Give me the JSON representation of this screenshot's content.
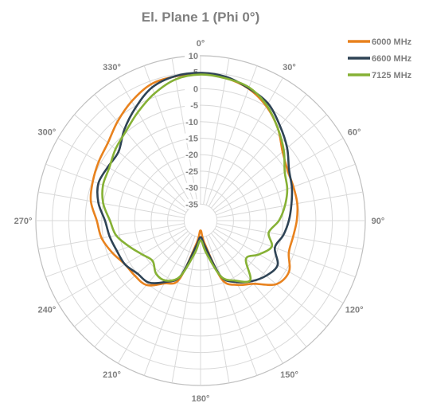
{
  "chart_data": {
    "type": "polar-line",
    "title": "El. Plane 1 (Phi 0°)",
    "angle_ticks": [
      {
        "deg": 0,
        "label": "0°"
      },
      {
        "deg": 30,
        "label": "30°"
      },
      {
        "deg": 60,
        "label": "60°"
      },
      {
        "deg": 90,
        "label": "90°"
      },
      {
        "deg": 120,
        "label": "120°"
      },
      {
        "deg": 150,
        "label": "150°"
      },
      {
        "deg": 180,
        "label": "180°"
      },
      {
        "deg": 210,
        "label": "210°"
      },
      {
        "deg": 240,
        "label": "240°"
      },
      {
        "deg": 270,
        "label": "270°"
      },
      {
        "deg": 300,
        "label": "300°"
      },
      {
        "deg": 330,
        "label": "330°"
      }
    ],
    "radial_ticks": [
      10,
      5,
      0,
      -5,
      -10,
      -15,
      -20,
      -25,
      -30,
      -35
    ],
    "radial_range": [
      -40,
      10
    ],
    "angular_grid_step": 10,
    "grid": true,
    "legend_position": "top-right",
    "series": [
      {
        "name": "6000 MHz",
        "color": "#e8821e",
        "angles": [
          0,
          10,
          20,
          30,
          40,
          50,
          60,
          70,
          80,
          90,
          100,
          110,
          120,
          130,
          140,
          150,
          160,
          170,
          180,
          190,
          200,
          210,
          220,
          230,
          240,
          250,
          260,
          270,
          280,
          290,
          300,
          310,
          320,
          330,
          340,
          350
        ],
        "values": [
          4.5,
          3.9,
          2.6,
          0,
          -3.5,
          -7.5,
          -9.5,
          -10,
          -10.2,
          -10.8,
          -11.5,
          -11.5,
          -9,
          -10,
          -15,
          -17.5,
          -21,
          -33,
          -37,
          -33,
          -21,
          -18,
          -14.5,
          -14,
          -13.5,
          -11.5,
          -9.5,
          -8.5,
          -6.2,
          -5.2,
          -4.3,
          -3.3,
          -0.8,
          1.8,
          4,
          4.4
        ]
      },
      {
        "name": "6600 MHz",
        "color": "#2e4355",
        "angles": [
          0,
          10,
          20,
          30,
          40,
          50,
          60,
          70,
          80,
          90,
          100,
          110,
          120,
          130,
          140,
          150,
          160,
          170,
          180,
          190,
          200,
          210,
          220,
          230,
          240,
          250,
          260,
          270,
          280,
          290,
          300,
          310,
          320,
          330,
          340,
          350
        ],
        "values": [
          4.8,
          4.3,
          2.7,
          1,
          -2.5,
          -5.7,
          -9,
          -10.5,
          -12,
          -13.2,
          -14.5,
          -16,
          -13,
          -14,
          -16,
          -18.5,
          -22,
          -32,
          -35,
          -32,
          -22,
          -18.5,
          -15.5,
          -15,
          -13.5,
          -13,
          -12,
          -11,
          -8.5,
          -7,
          -7.5,
          -7.5,
          -4,
          -0.5,
          3,
          4.5
        ]
      },
      {
        "name": "7125 MHz",
        "color": "#86b135",
        "angles": [
          0,
          10,
          20,
          30,
          40,
          50,
          60,
          70,
          80,
          90,
          100,
          110,
          120,
          130,
          140,
          150,
          160,
          170,
          180,
          190,
          200,
          210,
          220,
          230,
          240,
          250,
          260,
          270,
          280,
          290,
          300,
          310,
          320,
          330,
          340,
          350
        ],
        "values": [
          4.3,
          3.8,
          3,
          0.3,
          -3.5,
          -7,
          -10.5,
          -12,
          -14,
          -16.2,
          -19,
          -17,
          -19.5,
          -22,
          -16.5,
          -19,
          -22,
          -30,
          -34,
          -30,
          -22,
          -19,
          -19,
          -21,
          -19.5,
          -17,
          -14,
          -12.5,
          -10,
          -8.5,
          -8,
          -6.3,
          -4.7,
          -2,
          1,
          3.5
        ]
      }
    ]
  }
}
